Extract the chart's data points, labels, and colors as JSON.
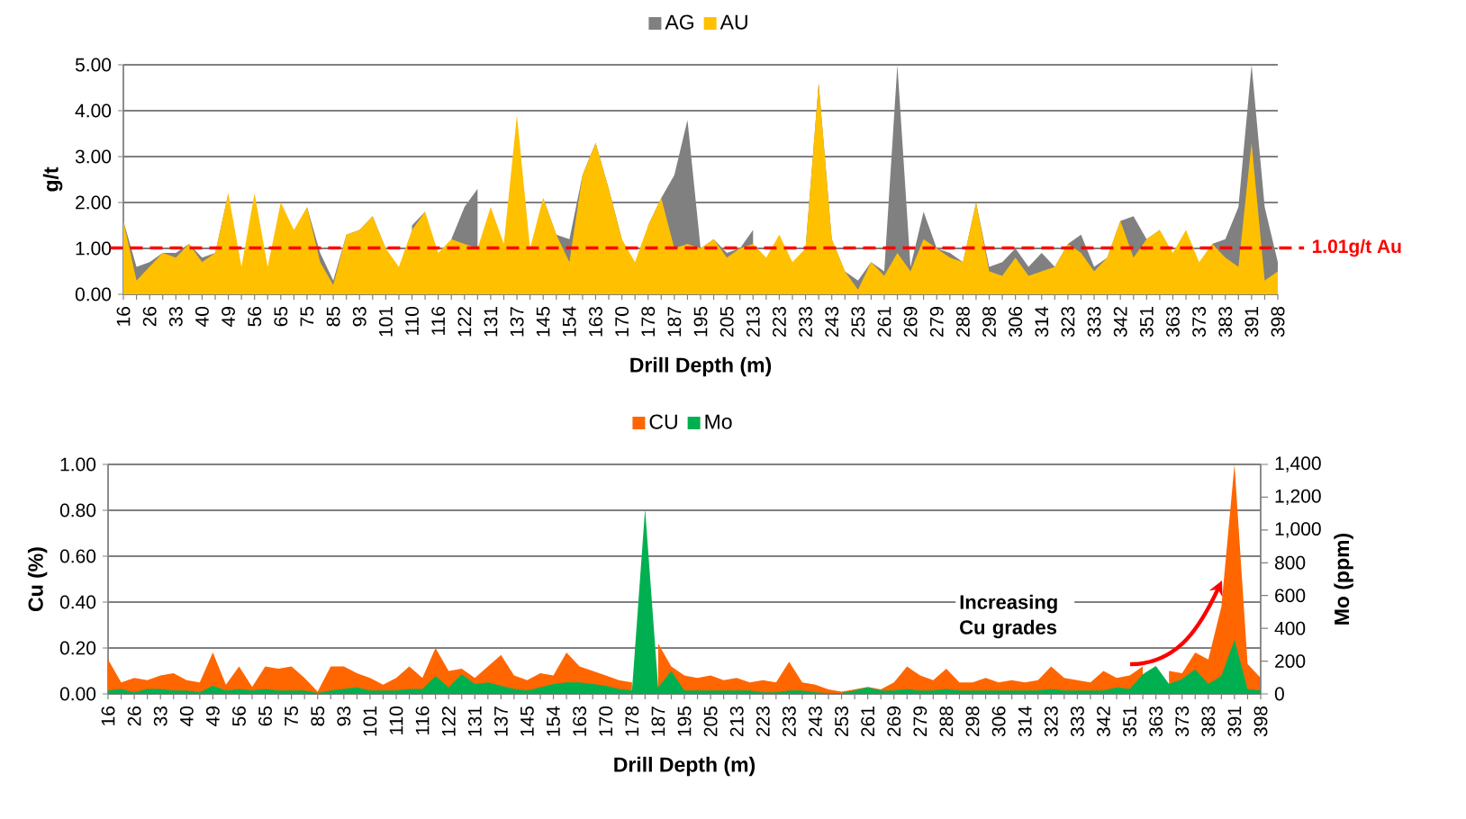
{
  "chart_data": [
    {
      "type": "area",
      "xlabel": "Drill Depth (m)",
      "ylabel": "g/t",
      "categories": [
        "16",
        null,
        "26",
        null,
        "33",
        null,
        "40",
        null,
        "49",
        null,
        "56",
        null,
        "65",
        null,
        "75",
        null,
        "85",
        null,
        "93",
        null,
        "101",
        null,
        "110",
        null,
        "116",
        null,
        "122",
        null,
        "131",
        null,
        "137",
        null,
        "145",
        null,
        "154",
        null,
        "163",
        null,
        "170",
        null,
        "178",
        null,
        "187",
        null,
        "195",
        null,
        "205",
        null,
        "213",
        null,
        "223",
        null,
        "233",
        null,
        "243",
        null,
        "253",
        null,
        "261",
        null,
        "269",
        null,
        "279",
        null,
        "288",
        null,
        "298",
        null,
        "306",
        null,
        "314",
        null,
        "323",
        null,
        "333",
        null,
        "342",
        null,
        "351",
        null,
        "363",
        null,
        "373",
        null,
        "383",
        null,
        "391",
        null,
        "398"
      ],
      "series": [
        {
          "name": "AG",
          "color": "#808080",
          "values": [
            1.6,
            0.6,
            0.7,
            0.9,
            0.9,
            1.1,
            0.8,
            0.9,
            2.2,
            null,
            2.2,
            null,
            2.0,
            null,
            1.9,
            0.9,
            0.3,
            1.3,
            1.4,
            1.7,
            1.0,
            null,
            1.5,
            1.8,
            null,
            1.2,
            1.9,
            2.3,
            null,
            null,
            3.9,
            null,
            2.1,
            1.3,
            1.2,
            2.6,
            3.3,
            2.3,
            1.2,
            null,
            1.5,
            2.1,
            2.6,
            3.8,
            1.0,
            1.2,
            0.9,
            1.0,
            1.4,
            null,
            1.3,
            null,
            1.0,
            4.6,
            1.2,
            0.5,
            0.3,
            0.7,
            0.5,
            5.0,
            0.6,
            1.8,
            1.0,
            0.9,
            0.7,
            2.0,
            0.6,
            0.7,
            1.0,
            0.6,
            0.9,
            0.6,
            1.1,
            1.3,
            0.6,
            0.8,
            1.6,
            1.7,
            1.2,
            1.4,
            null,
            1.4,
            null,
            1.1,
            1.2,
            1.9,
            5.0,
            1.9,
            0.7
          ]
        },
        {
          "name": "AU",
          "color": "#ffc000",
          "values": [
            1.6,
            0.3,
            0.6,
            0.9,
            0.8,
            1.1,
            0.7,
            0.9,
            2.2,
            0.6,
            2.2,
            0.6,
            2.0,
            1.4,
            1.9,
            0.7,
            0.2,
            1.3,
            1.4,
            1.7,
            1.0,
            0.6,
            1.4,
            1.8,
            0.9,
            1.2,
            1.1,
            1.0,
            1.9,
            1.1,
            3.9,
            1.0,
            2.1,
            1.3,
            0.7,
            2.6,
            3.3,
            2.3,
            1.2,
            0.7,
            1.5,
            2.1,
            1.0,
            1.1,
            1.0,
            1.2,
            0.8,
            1.0,
            1.1,
            0.8,
            1.3,
            0.7,
            1.0,
            4.6,
            1.2,
            0.5,
            0.1,
            0.7,
            0.4,
            0.9,
            0.5,
            1.2,
            1.0,
            0.8,
            0.7,
            2.0,
            0.5,
            0.4,
            0.8,
            0.4,
            0.5,
            0.6,
            1.1,
            0.9,
            0.5,
            0.8,
            1.6,
            0.8,
            1.2,
            1.4,
            0.9,
            1.4,
            0.7,
            1.1,
            0.8,
            0.6,
            3.3,
            0.3,
            0.5
          ]
        }
      ],
      "ylim": [
        0,
        5
      ],
      "yticks": [
        {
          "value": 0,
          "label": "0.00"
        },
        {
          "value": 1,
          "label": "1.00"
        },
        {
          "value": 2,
          "label": "2.00"
        },
        {
          "value": 3,
          "label": "3.00"
        },
        {
          "value": 4,
          "label": "4.00"
        },
        {
          "value": 5,
          "label": "5.00"
        }
      ],
      "grid": "y",
      "legend": "top",
      "ref_lines": [
        {
          "axis": "y",
          "value": 1.01,
          "label": "1.01g/t Au",
          "color": "#ff0000",
          "line_style": "dashed"
        }
      ]
    },
    {
      "type": "area",
      "xlabel": "Drill Depth (m)",
      "ylabel": "Cu (%)",
      "y2label": "Mo (ppm)",
      "categories": [
        "16",
        null,
        "26",
        null,
        "33",
        null,
        "40",
        null,
        "49",
        null,
        "56",
        null,
        "65",
        null,
        "75",
        null,
        "85",
        null,
        "93",
        null,
        "101",
        null,
        "110",
        null,
        "116",
        null,
        "122",
        null,
        "131",
        null,
        "137",
        null,
        "145",
        null,
        "154",
        null,
        "163",
        null,
        "170",
        null,
        "178",
        null,
        "187",
        null,
        "195",
        null,
        "205",
        null,
        "213",
        null,
        "223",
        null,
        "233",
        null,
        "243",
        null,
        "253",
        null,
        "261",
        null,
        "269",
        null,
        "279",
        null,
        "288",
        null,
        "298",
        null,
        "306",
        null,
        "314",
        null,
        "323",
        null,
        "333",
        null,
        "342",
        null,
        "351",
        null,
        "363",
        null,
        "373",
        null,
        "383",
        null,
        "391",
        null,
        "398"
      ],
      "series": [
        {
          "name": "CU",
          "color": "#ff6600",
          "values": [
            0.15,
            0.05,
            0.07,
            0.06,
            0.08,
            0.09,
            0.06,
            0.05,
            0.18,
            0.04,
            0.12,
            0.03,
            0.12,
            0.11,
            0.12,
            0.07,
            0.01,
            0.12,
            0.12,
            0.09,
            0.07,
            0.04,
            0.07,
            0.12,
            0.07,
            0.2,
            0.1,
            0.11,
            0.07,
            0.12,
            0.17,
            0.08,
            0.06,
            0.09,
            0.08,
            0.18,
            0.12,
            0.1,
            0.08,
            0.06,
            0.05,
            null,
            0.22,
            0.12,
            0.08,
            0.07,
            0.08,
            0.06,
            0.07,
            0.05,
            0.06,
            0.05,
            0.14,
            0.05,
            0.04,
            0.02,
            0.01,
            0.02,
            0.03,
            0.02,
            0.05,
            0.12,
            0.08,
            0.06,
            0.11,
            0.05,
            0.05,
            0.07,
            0.05,
            0.06,
            0.05,
            0.06,
            0.12,
            0.07,
            0.06,
            0.05,
            0.1,
            0.07,
            0.08,
            0.12,
            null,
            0.1,
            0.09,
            0.18,
            0.15,
            0.38,
            1.0,
            0.13,
            0.07
          ]
        },
        {
          "name": "Mo",
          "color": "#00b050",
          "axis": "y2",
          "values": [
            20,
            30,
            10,
            30,
            30,
            20,
            20,
            10,
            50,
            20,
            30,
            20,
            30,
            20,
            20,
            20,
            5,
            20,
            30,
            40,
            20,
            20,
            20,
            30,
            30,
            110,
            40,
            120,
            60,
            70,
            50,
            30,
            20,
            40,
            60,
            70,
            70,
            60,
            50,
            30,
            20,
            1130,
            40,
            140,
            20,
            20,
            20,
            20,
            20,
            20,
            10,
            10,
            20,
            20,
            10,
            5,
            5,
            20,
            40,
            20,
            20,
            30,
            20,
            20,
            30,
            20,
            20,
            20,
            20,
            20,
            20,
            20,
            30,
            20,
            20,
            20,
            20,
            40,
            30,
            120,
            170,
            60,
            90,
            150,
            60,
            110,
            330,
            30,
            20
          ]
        }
      ],
      "ylim": [
        0,
        1
      ],
      "yticks": [
        {
          "value": 0,
          "label": "0.00"
        },
        {
          "value": 0.2,
          "label": "0.20"
        },
        {
          "value": 0.4,
          "label": "0.40"
        },
        {
          "value": 0.6,
          "label": "0.60"
        },
        {
          "value": 0.8,
          "label": "0.80"
        },
        {
          "value": 1,
          "label": "1.00"
        }
      ],
      "y2lim": [
        0,
        1400
      ],
      "y2ticks": [
        0,
        200,
        400,
        600,
        800,
        {
          "value": 1000,
          "label": "1,000"
        },
        {
          "value": 1200,
          "label": "1,200"
        },
        {
          "value": 1400,
          "label": "1,400"
        }
      ],
      "grid": "y",
      "legend": "top",
      "annotations": [
        "Increasing Cu grades"
      ]
    }
  ]
}
